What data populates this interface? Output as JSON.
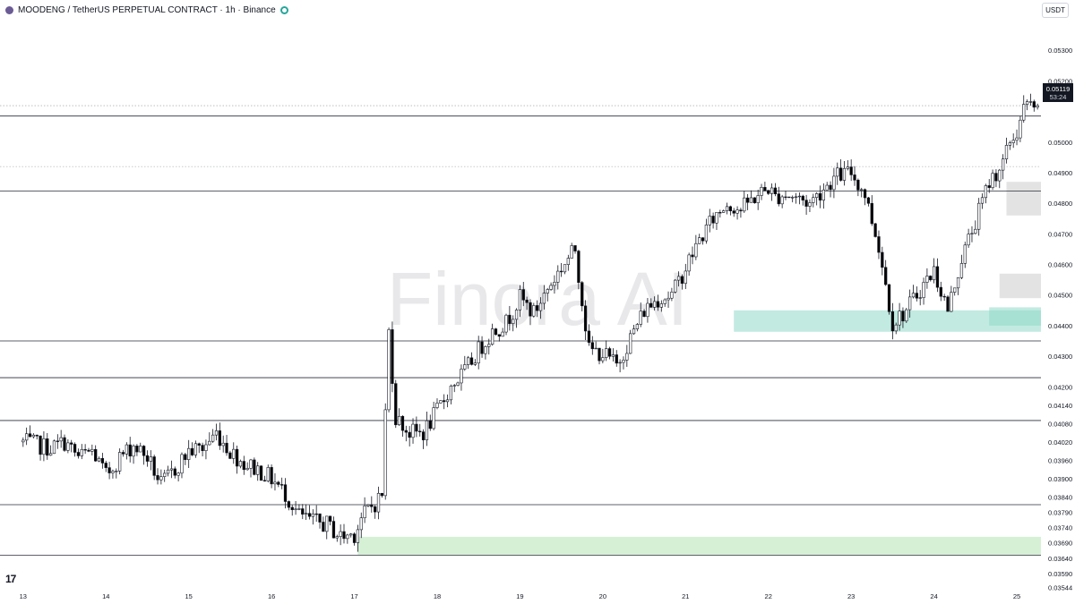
{
  "header": {
    "symbol_text": "MOODENG / TetherUS PERPETUAL CONTRACT · 1h · Binance"
  },
  "currency_button": "USDT",
  "watermark": "Finora AI",
  "logo_text": "17",
  "price_label": {
    "value": "0.05119",
    "countdown": "53:24"
  },
  "colors": {
    "up_candle": "#ffffff",
    "down_candle": "#000000",
    "wick": "#131722",
    "support_zone": "#c8ebc8",
    "demand_zone": "#8fd9c8",
    "supply_zone": "#d9d9d9",
    "level_line": "#2a2e39",
    "watermark": "#e8e8ea"
  },
  "chart_data": {
    "type": "candlestick",
    "title": "",
    "xlabel": "",
    "ylabel": "",
    "ylim": [
      0.0354,
      0.054
    ],
    "y_ticks": [
      0.053,
      0.052,
      0.05119,
      0.05,
      0.049,
      0.048,
      0.047,
      0.046,
      0.045,
      0.044,
      0.043,
      0.042,
      0.0414,
      0.0408,
      0.0402,
      0.0396,
      0.039,
      0.0384,
      0.0379,
      0.0374,
      0.0369,
      0.0364,
      0.0359,
      0.03544
    ],
    "y_tick_labels": [
      "0.05300",
      "0.05200",
      "0.05119",
      "0.05000",
      "0.04900",
      "0.04800",
      "0.04700",
      "0.04600",
      "0.04500",
      "0.04400",
      "0.04300",
      "0.04200",
      "0.04140",
      "0.04080",
      "0.04020",
      "0.03960",
      "0.03900",
      "0.03840",
      "0.03790",
      "0.03740",
      "0.03690",
      "0.03640",
      "0.03590",
      "0.03544"
    ],
    "x_tick_labels": [
      "13",
      "14",
      "15",
      "16",
      "17",
      "18",
      "19",
      "20",
      "21",
      "22",
      "23",
      "24",
      "25"
    ],
    "x_range_hours": [
      -6.7,
      295
    ],
    "x_tick_hours": [
      0,
      24,
      48,
      72,
      96,
      120,
      144,
      168,
      192,
      216,
      240,
      264,
      288
    ],
    "horizontal_levels": [
      0.05085,
      0.0484,
      0.0435,
      0.0423,
      0.0409,
      0.03815,
      0.0365
    ],
    "dotted_levels": [
      0.05119,
      0.0492
    ],
    "zones": [
      {
        "kind": "support",
        "y_top": 0.0371,
        "y_bottom": 0.0365,
        "x_start_hour": 97
      },
      {
        "kind": "demand",
        "y_top": 0.0445,
        "y_bottom": 0.0438,
        "x_start_hour": 206
      },
      {
        "kind": "demand",
        "y_top": 0.0446,
        "y_bottom": 0.044,
        "x_start_hour": 280
      },
      {
        "kind": "supply",
        "y_top": 0.0487,
        "y_bottom": 0.0476,
        "x_start_hour": 285
      },
      {
        "kind": "supply",
        "y_top": 0.0457,
        "y_bottom": 0.0449,
        "x_start_hour": 283
      }
    ],
    "last_price": 0.05119,
    "close_anchors_hour": [
      0,
      4,
      8,
      12,
      16,
      20,
      24,
      28,
      32,
      36,
      40,
      44,
      48,
      52,
      56,
      60,
      64,
      68,
      72,
      76,
      80,
      84,
      88,
      92,
      96,
      98,
      100,
      102,
      104,
      106,
      108,
      112,
      116,
      120,
      124,
      128,
      132,
      136,
      140,
      144,
      148,
      152,
      156,
      160,
      164,
      168,
      172,
      176,
      180,
      184,
      188,
      192,
      196,
      200,
      204,
      208,
      212,
      216,
      218,
      220,
      224,
      228,
      232,
      236,
      240,
      244,
      248,
      252,
      256,
      260,
      264,
      268,
      272,
      276,
      280,
      284,
      286,
      288,
      290,
      292,
      294
    ],
    "close_anchors": [
      0.0402,
      0.0401,
      0.04,
      0.0402,
      0.0397,
      0.0399,
      0.0391,
      0.0397,
      0.0401,
      0.0397,
      0.0388,
      0.0393,
      0.0399,
      0.04,
      0.0405,
      0.0399,
      0.0395,
      0.0393,
      0.039,
      0.0385,
      0.0378,
      0.0376,
      0.0375,
      0.0371,
      0.0372,
      0.0377,
      0.038,
      0.0382,
      0.0385,
      0.0438,
      0.041,
      0.0405,
      0.0405,
      0.0412,
      0.042,
      0.0425,
      0.0432,
      0.0438,
      0.0441,
      0.0449,
      0.0444,
      0.0452,
      0.0459,
      0.0465,
      0.0432,
      0.0431,
      0.0427,
      0.0436,
      0.0445,
      0.0449,
      0.045,
      0.0459,
      0.0468,
      0.0475,
      0.048,
      0.0478,
      0.0482,
      0.0485,
      0.0482,
      0.0483,
      0.0482,
      0.048,
      0.0485,
      0.0489,
      0.049,
      0.0483,
      0.0466,
      0.0441,
      0.0445,
      0.0452,
      0.0458,
      0.0445,
      0.0462,
      0.0474,
      0.0487,
      0.0493,
      0.05,
      0.0503,
      0.0511,
      0.0512,
      0.05119
    ]
  }
}
